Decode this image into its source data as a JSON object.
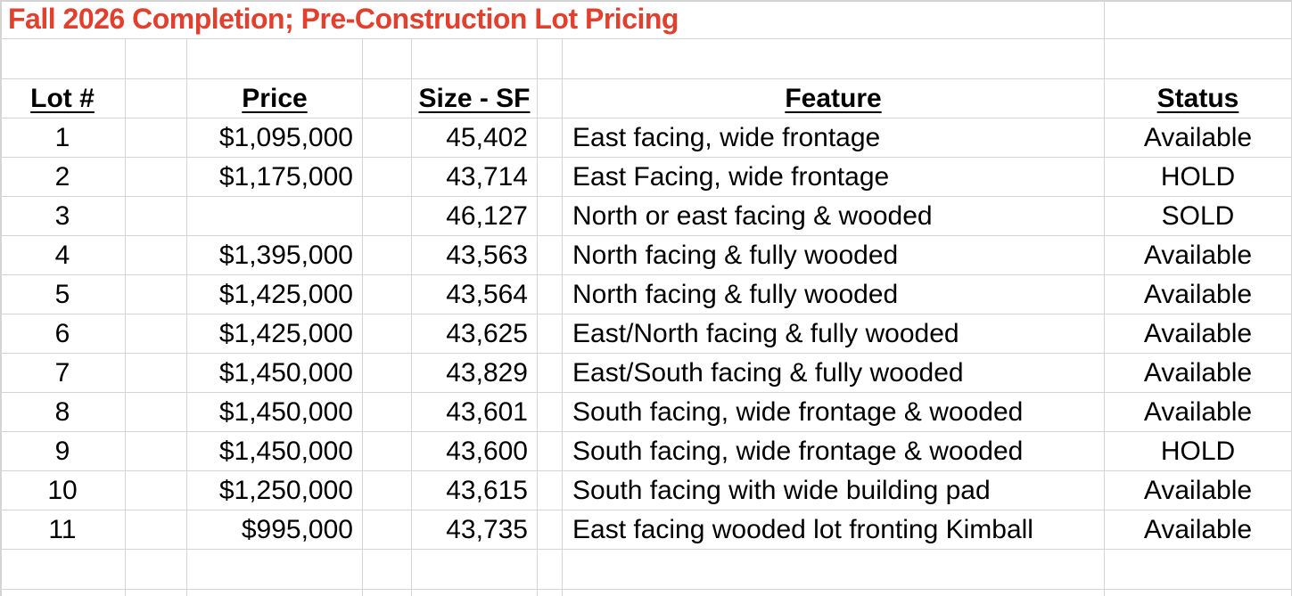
{
  "title": "Fall 2026 Completion; Pre-Construction Lot Pricing",
  "columns": {
    "lot": "Lot #",
    "price": "Price",
    "size": "Size - SF",
    "feature": "Feature",
    "status": "Status"
  },
  "rows": [
    {
      "lot": "1",
      "price": "$1,095,000",
      "size": "45,402",
      "feature": "East facing, wide frontage",
      "status": "Available"
    },
    {
      "lot": "2",
      "price": "$1,175,000",
      "size": "43,714",
      "feature": "East Facing, wide frontage",
      "status": "HOLD"
    },
    {
      "lot": "3",
      "price": "",
      "size": "46,127",
      "feature": "North or east facing & wooded",
      "status": "SOLD"
    },
    {
      "lot": "4",
      "price": "$1,395,000",
      "size": "43,563",
      "feature": "North facing & fully wooded",
      "status": "Available"
    },
    {
      "lot": "5",
      "price": "$1,425,000",
      "size": "43,564",
      "feature": "North facing & fully wooded",
      "status": "Available"
    },
    {
      "lot": "6",
      "price": "$1,425,000",
      "size": "43,625",
      "feature": "East/North facing & fully wooded",
      "status": "Available"
    },
    {
      "lot": "7",
      "price": "$1,450,000",
      "size": "43,829",
      "feature": "East/South facing & fully wooded",
      "status": "Available"
    },
    {
      "lot": "8",
      "price": "$1,450,000",
      "size": "43,601",
      "feature": "South facing, wide frontage & wooded",
      "status": "Available"
    },
    {
      "lot": "9",
      "price": "$1,450,000",
      "size": "43,600",
      "feature": "South facing, wide frontage & wooded",
      "status": "HOLD"
    },
    {
      "lot": "10",
      "price": "$1,250,000",
      "size": "43,615",
      "feature": "South facing with wide building pad",
      "status": "Available"
    },
    {
      "lot": "11",
      "price": "$995,000",
      "size": "43,735",
      "feature": "East facing wooded lot fronting Kimball",
      "status": "Available"
    }
  ],
  "colors": {
    "title_text": "#e2402f",
    "gridline": "#d4d4d4",
    "body_text": "#000000",
    "background": "#ffffff"
  }
}
